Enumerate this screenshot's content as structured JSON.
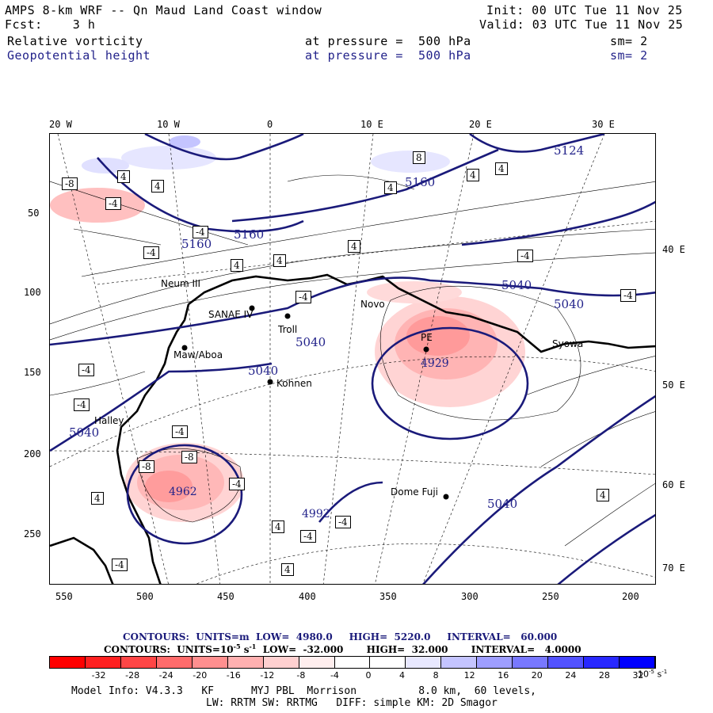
{
  "header": {
    "title": "AMPS 8-km WRF -- Qn Maud Land Coast window",
    "init": "Init: 00 UTC Tue 11 Nov 25",
    "fcst": "Fcst:    3 h",
    "valid": "Valid: 03 UTC Tue 11 Nov 25",
    "field1": "Relative vorticity",
    "field1_level": "at pressure =  500 hPa",
    "field1_sm": "sm= 2",
    "field2": "Geopotential height",
    "field2_level": "at pressure =  500 hPa",
    "field2_sm": "sm= 2"
  },
  "map": {
    "lon_labels": [
      "20 W",
      "10 W",
      "0",
      "10 E",
      "20 E",
      "30 E"
    ],
    "left_ticks": [
      "50",
      "100",
      "150",
      "200",
      "250"
    ],
    "right_lat_labels": [
      "40 E",
      "50 E",
      "60 E",
      "70 E"
    ],
    "bottom_ticks": [
      "550",
      "500",
      "450",
      "400",
      "350",
      "300",
      "250",
      "200"
    ],
    "stations": [
      "Neum III",
      "SANAE IV",
      "Troll",
      "Novo",
      "PE",
      "Syowa",
      "Maw/Aboa",
      "Kohnen",
      "Halley",
      "Dome Fuji"
    ],
    "height_labels": [
      "5160",
      "5160",
      "5160",
      "5124",
      "5040",
      "5040",
      "5040",
      "5040",
      "5040",
      "5040",
      "4929",
      "4962",
      "4992"
    ],
    "vort_labels": [
      "4",
      "-4",
      "-8",
      "8"
    ]
  },
  "contours_info": {
    "line1_label": "CONTOURS:  UNITS=m  LOW=  4980.0     HIGH=  5220.0     INTERVAL=   60.000",
    "line2_label": "CONTOURS:  UNITS=10",
    "line2_sup": "-5",
    "line2_rest": " s",
    "line2_sup2": "-1",
    "line2_tail": "  LOW=  -32.000       HIGH=  32.000       INTERVAL=   4.0000"
  },
  "colorbar": {
    "labels": [
      "-32",
      "-28",
      "-24",
      "-20",
      "-16",
      "-12",
      "-8",
      "-4",
      "0",
      "4",
      "8",
      "12",
      "16",
      "20",
      "24",
      "28",
      "32"
    ],
    "units": "10",
    "units_sup": "-5",
    "units_s": " s",
    "units_sup2": "-1",
    "colors": [
      "#ff0000",
      "#ff2020",
      "#ff4646",
      "#ff6b6b",
      "#ff8f8f",
      "#ffb0b0",
      "#ffd0d0",
      "#ffeeee",
      "#ffffff",
      "#ffffff",
      "#e8e8ff",
      "#c4c4ff",
      "#9e9eff",
      "#7878ff",
      "#5252ff",
      "#2828ff",
      "#0000ff"
    ]
  },
  "footer": {
    "line1": "Model Info: V4.3.3   KF      MYJ PBL  Morrison          8.0 km,  60 levels,",
    "line2": "LW: RRTM SW: RRTMG   DIFF: simple KM: 2D Smagor"
  }
}
